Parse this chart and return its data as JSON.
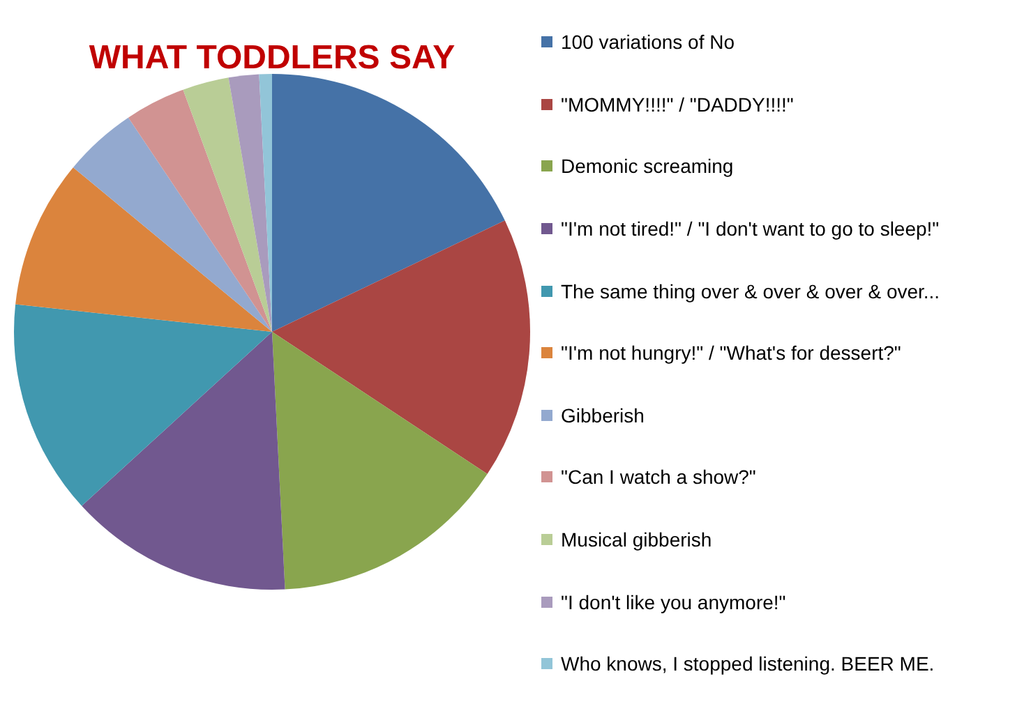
{
  "chart_data": {
    "type": "pie",
    "title": "WHAT TODDLERS SAY",
    "categories": [
      "100 variations of No",
      "\"MOMMY!!!!\" / \"DADDY!!!!\"",
      "Demonic screaming",
      "\"I'm not tired!\" / \"I don't want to go to sleep!\"",
      "The same thing over & over & over & over...",
      "\"I'm not hungry!\" / \"What's for dessert?\"",
      "Gibberish",
      "\"Can I watch a show?\"",
      "Musical gibberish",
      "\"I don't like you anymore!\"",
      "Who knows, I stopped listening. BEER ME."
    ],
    "values": [
      17.9,
      16.4,
      14.9,
      14,
      13.5,
      9.3,
      4.6,
      3.8,
      2.9,
      1.9,
      0.8
    ],
    "colors": [
      "#4572a7",
      "#aa4643",
      "#89a54e",
      "#71588f",
      "#4198af",
      "#db843d",
      "#93a9cf",
      "#d19392",
      "#b9cd96",
      "#a99bbd",
      "#92c5d8"
    ],
    "legend": "right"
  }
}
